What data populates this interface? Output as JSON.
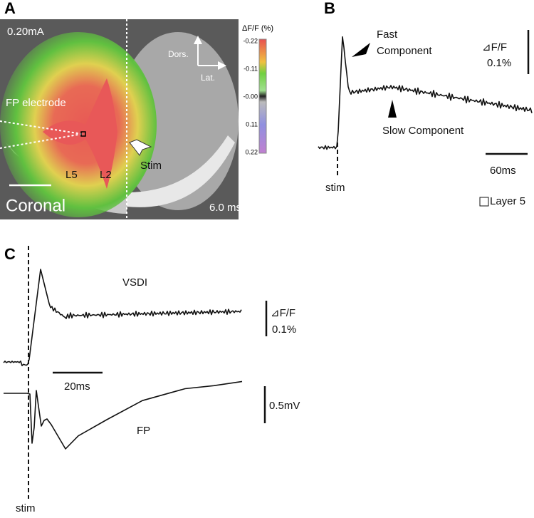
{
  "panel_a": {
    "label": "A",
    "current": "0.20mA",
    "electrode": "FP electrode",
    "layers": [
      "L5",
      "L2"
    ],
    "stim": "Stim",
    "view": "Coronal",
    "time": "6.0 ms",
    "axes": {
      "dorsal": "Dors.",
      "lateral": "Lat."
    },
    "colorbar": {
      "title": "ΔF/F (%)",
      "ticks": [
        "-0.22",
        "-0.11",
        "-0.00",
        "0.11",
        "0.22"
      ]
    }
  },
  "panel_b": {
    "label": "B",
    "fast": [
      "Fast",
      "Component"
    ],
    "slow": "Slow Component",
    "scale_y": [
      "⊿F/F",
      "0.1%"
    ],
    "scale_x": "60ms",
    "stim": "stim",
    "legend": "Layer 5"
  },
  "panel_c": {
    "label": "C",
    "vsdi": "VSDI",
    "fp": "FP",
    "scale_vsdi": [
      "⊿F/F",
      "0.1%"
    ],
    "scale_time": "20ms",
    "scale_fp": "0.5mV",
    "stim": "stim"
  }
}
